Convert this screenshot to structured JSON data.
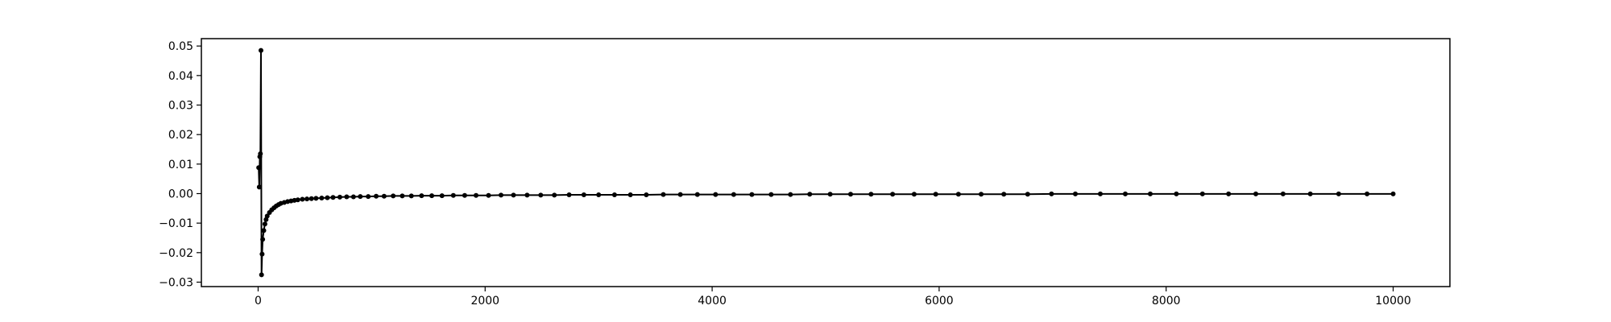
{
  "chart_data": {
    "type": "line",
    "title": "",
    "xlabel": "",
    "ylabel": "",
    "xlim": [
      -500,
      10500
    ],
    "ylim": [
      -0.0315,
      0.0525
    ],
    "xticks": [
      0,
      2000,
      4000,
      6000,
      8000,
      10000
    ],
    "yticks": [
      -0.03,
      -0.02,
      -0.01,
      0.0,
      0.01,
      0.02,
      0.03,
      0.04,
      0.05
    ],
    "xtick_labels": [
      "0",
      "2000",
      "4000",
      "6000",
      "8000",
      "10000"
    ],
    "ytick_labels": [
      "−0.03",
      "−0.02",
      "−0.01",
      "0.00",
      "0.01",
      "0.02",
      "0.03",
      "0.04",
      "0.05"
    ],
    "grid": false,
    "legend": "none",
    "colors": {
      "line": "#000000",
      "marker": "#000000",
      "axes": "#000000"
    },
    "series": [
      {
        "x": [
          5,
          10,
          15,
          20,
          25,
          30,
          35,
          40,
          50,
          60,
          70,
          80,
          100,
          120,
          140,
          160,
          180,
          200,
          230,
          260,
          290,
          320,
          350,
          390,
          430,
          470,
          510,
          560,
          610,
          660,
          720,
          780,
          840,
          900,
          970,
          1040,
          1110,
          1190,
          1270,
          1350,
          1440,
          1530,
          1620,
          1720,
          1820,
          1920,
          2030,
          2140,
          2250,
          2370,
          2490,
          2610,
          2740,
          2870,
          3000,
          3140,
          3280,
          3420,
          3570,
          3720,
          3870,
          4030,
          4190,
          4350,
          4520,
          4690,
          4860,
          5040,
          5220,
          5400,
          5590,
          5780,
          5970,
          6170,
          6370,
          6570,
          6780,
          6990,
          7200,
          7420,
          7640,
          7860,
          8090,
          8320,
          8550,
          8790,
          9030,
          9270,
          9520,
          9770,
          10000
        ],
        "y": [
          0.0088,
          0.0022,
          0.0125,
          0.0135,
          0.0485,
          -0.0275,
          -0.0205,
          -0.0155,
          -0.0125,
          -0.0103,
          -0.0088,
          -0.0076,
          -0.0064,
          -0.0055,
          -0.0048,
          -0.0042,
          -0.0037,
          -0.0033,
          -0.003,
          -0.0027,
          -0.0025,
          -0.0023,
          -0.0021,
          -0.0019,
          -0.0018,
          -0.0017,
          -0.0016,
          -0.0015,
          -0.0014,
          -0.0013,
          -0.0012,
          -0.0011,
          -0.0011,
          -0.001,
          -0.001,
          -0.0009,
          -0.0009,
          -0.0008,
          -0.0008,
          -0.0008,
          -0.0007,
          -0.0007,
          -0.0007,
          -0.0006,
          -0.0006,
          -0.0006,
          -0.0006,
          -0.0005,
          -0.0005,
          -0.0005,
          -0.0005,
          -0.0005,
          -0.0004,
          -0.0004,
          -0.0004,
          -0.0004,
          -0.0004,
          -0.0004,
          -0.0003,
          -0.0003,
          -0.0003,
          -0.0003,
          -0.0003,
          -0.0003,
          -0.0003,
          -0.0003,
          -0.0002,
          -0.0002,
          -0.0002,
          -0.0002,
          -0.0002,
          -0.0002,
          -0.0002,
          -0.0002,
          -0.0002,
          -0.0002,
          -0.0002,
          -0.0001,
          -0.0001,
          -0.0001,
          -0.0001,
          -0.0001,
          -0.0001,
          -0.0001,
          -0.0001,
          -0.0001,
          -0.0001,
          -0.0001,
          -0.0001,
          -0.0001,
          -0.0001
        ]
      }
    ]
  }
}
